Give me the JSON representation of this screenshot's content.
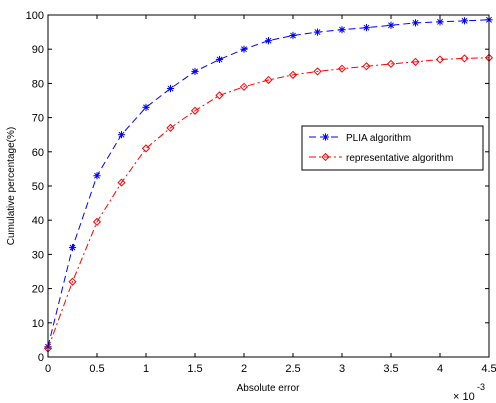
{
  "chart_data": {
    "type": "line",
    "title": "",
    "xlabel": "Absolute error",
    "ylabel": "Cumulative percentage(%)",
    "x_exponent_label": "× 10",
    "x_exponent_power": "-3",
    "x_scale": 0.001,
    "xlim": [
      0,
      4.5
    ],
    "ylim": [
      0,
      100
    ],
    "x_ticks": [
      0,
      0.5,
      1,
      1.5,
      2,
      2.5,
      3,
      3.5,
      4,
      4.5
    ],
    "x_tick_labels": [
      "0",
      "0.5",
      "1",
      "1.5",
      "2",
      "2.5",
      "3",
      "3.5",
      "4",
      "4.5"
    ],
    "y_ticks": [
      0,
      10,
      20,
      30,
      40,
      50,
      60,
      70,
      80,
      90,
      100
    ],
    "y_tick_labels": [
      "0",
      "10",
      "20",
      "30",
      "40",
      "50",
      "60",
      "70",
      "80",
      "90",
      "100"
    ],
    "grid": false,
    "legend_position": "right-middle",
    "x": [
      0,
      0.25,
      0.5,
      0.75,
      1,
      1.25,
      1.5,
      1.75,
      2,
      2.25,
      2.5,
      2.75,
      3,
      3.25,
      3.5,
      3.75,
      4,
      4.25,
      4.5
    ],
    "series": [
      {
        "name": "PLIA algorithm",
        "color": "#0000ff",
        "marker": "asterisk",
        "line_style": "dashed",
        "values": [
          3,
          32,
          53,
          65,
          73,
          78.5,
          83.5,
          87,
          90,
          92.5,
          94,
          95,
          95.7,
          96.3,
          97,
          97.7,
          98,
          98.3,
          98.6
        ]
      },
      {
        "name": "representative algorithm",
        "color": "#ff0000",
        "marker": "diamond",
        "line_style": "dashdot",
        "values": [
          2.5,
          22,
          39.5,
          51,
          61,
          67,
          72,
          76.5,
          79,
          81,
          82.5,
          83.5,
          84.3,
          85,
          85.7,
          86.3,
          87,
          87.3,
          87.5
        ]
      }
    ]
  }
}
